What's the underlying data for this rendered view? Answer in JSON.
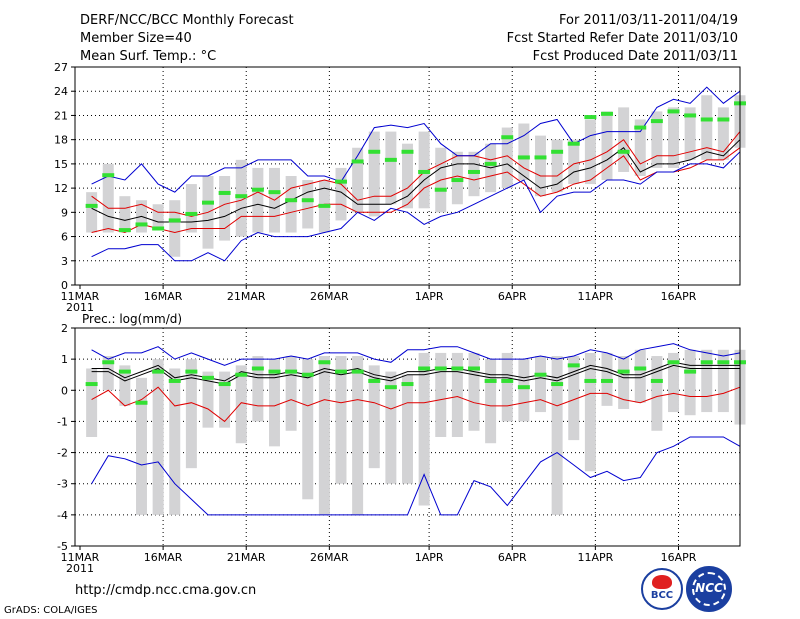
{
  "header": {
    "title": "DERF/NCC/BCC Monthly Forecast",
    "member_size": "Member Size=40",
    "variable": "Mean Surf. Temp.: °C",
    "forecast_period": "For 2011/03/11-2011/04/19",
    "started_refer": "Fcst Started Refer Date 2011/03/10",
    "produced": "Fcst Produced Date 2011/03/11"
  },
  "footer": {
    "url": "http://cmdp.ncc.cma.gov.cn",
    "credit": "GrADS: COLA/IGES",
    "logo_left_text": "BCC",
    "logo_right_text": "NCC"
  },
  "colors": {
    "box": "#d3d3d5",
    "member": "#33e033",
    "median": "#000000",
    "inner_band": "#e00000",
    "outer_band": "#0000d0",
    "grid": "#000000"
  },
  "chart_data": [
    {
      "type": "box-plume",
      "title": "Mean Surf. Temp.: °C",
      "ylabel": "°C",
      "ylim": [
        0,
        27
      ],
      "yticks": [
        0,
        3,
        6,
        9,
        12,
        15,
        18,
        21,
        24,
        27
      ],
      "x_days": 40,
      "xtick_days": [
        0,
        5,
        10,
        15,
        21,
        26,
        31,
        36
      ],
      "xtick_labels": [
        "11MAR",
        "16MAR",
        "21MAR",
        "26MAR",
        "1APR",
        "6APR",
        "11APR",
        "16APR"
      ],
      "x_sublabel": "2011",
      "grid": "dotted",
      "series": [
        {
          "name": "median",
          "values": [
            9.5,
            8.5,
            8.0,
            8.5,
            7.8,
            7.8,
            7.8,
            8.0,
            8.5,
            9.5,
            10.0,
            9.5,
            10.5,
            11.5,
            12.0,
            11.5,
            10.0,
            10.0,
            10.0,
            11.0,
            13.0,
            14.5,
            15.0,
            15.0,
            14.5,
            15.0,
            13.5,
            12.0,
            12.5,
            14.0,
            14.5,
            15.5,
            17.0,
            14.0,
            15.0,
            15.0,
            15.5,
            16.5,
            16.0,
            18.0
          ]
        },
        {
          "name": "red_upper",
          "values": [
            11.0,
            9.5,
            9.5,
            10.0,
            9.0,
            9.0,
            8.5,
            9.0,
            10.0,
            10.5,
            11.5,
            10.5,
            12.0,
            12.5,
            13.0,
            12.5,
            10.5,
            11.0,
            11.0,
            12.0,
            14.0,
            15.0,
            16.0,
            16.0,
            15.5,
            16.0,
            14.5,
            13.5,
            13.5,
            15.0,
            15.5,
            16.5,
            18.0,
            15.0,
            16.0,
            16.0,
            16.5,
            17.0,
            16.5,
            19.0
          ]
        },
        {
          "name": "red_lower",
          "values": [
            6.5,
            7.0,
            6.5,
            7.5,
            7.0,
            6.5,
            7.0,
            7.0,
            7.0,
            8.5,
            8.5,
            8.5,
            9.0,
            9.5,
            10.0,
            10.0,
            9.0,
            9.0,
            9.0,
            10.0,
            12.0,
            13.0,
            13.5,
            13.0,
            13.5,
            14.0,
            12.5,
            11.0,
            11.5,
            12.5,
            13.0,
            14.5,
            16.0,
            13.0,
            14.0,
            14.0,
            14.5,
            15.5,
            15.5,
            17.0
          ]
        },
        {
          "name": "blue_upper",
          "values": [
            12.5,
            13.5,
            13.0,
            15.0,
            12.5,
            11.5,
            13.5,
            13.5,
            14.5,
            14.5,
            15.5,
            15.5,
            15.5,
            13.5,
            13.5,
            12.8,
            16.0,
            19.5,
            19.8,
            19.5,
            20.0,
            17.5,
            16.0,
            16.0,
            17.5,
            17.5,
            18.5,
            20.0,
            20.5,
            17.5,
            18.5,
            19.0,
            19.0,
            19.0,
            22.0,
            23.0,
            22.5,
            24.5,
            22.5,
            24.0
          ]
        },
        {
          "name": "blue_lower",
          "values": [
            3.5,
            4.5,
            4.5,
            5.0,
            5.0,
            3.0,
            3.0,
            4.0,
            3.0,
            5.5,
            6.5,
            6.0,
            6.0,
            6.0,
            6.5,
            7.0,
            9.0,
            8.0,
            9.5,
            9.0,
            7.5,
            8.5,
            9.0,
            10.0,
            11.0,
            12.0,
            13.0,
            9.0,
            11.0,
            11.5,
            11.5,
            13.0,
            13.0,
            12.5,
            14.0,
            14.0,
            15.0,
            15.0,
            14.5,
            16.5
          ]
        },
        {
          "name": "members",
          "values": [
            9.8,
            13.6,
            6.8,
            7.5,
            7.0,
            8.0,
            8.8,
            10.2,
            11.4,
            11.0,
            11.8,
            11.5,
            10.5,
            10.5,
            9.8,
            12.8,
            15.3,
            16.5,
            15.5,
            16.5,
            14.0,
            11.8,
            13.0,
            14.0,
            15.0,
            18.3,
            15.8,
            15.8,
            16.5,
            17.5,
            20.8,
            21.2,
            16.5,
            19.5,
            20.3,
            21.5,
            21.0,
            20.5,
            20.5,
            22.5
          ]
        }
      ],
      "boxes": {
        "lows": [
          6.5,
          6.5,
          6.5,
          6.5,
          7.0,
          3.5,
          6.5,
          4.5,
          5.5,
          6.0,
          6.5,
          6.5,
          6.5,
          7.0,
          6.5,
          8.0,
          9.0,
          8.5,
          10.0,
          9.5,
          9.5,
          9.0,
          10.0,
          11.0,
          11.5,
          12.0,
          13.0,
          11.0,
          11.5,
          12.5,
          12.5,
          13.0,
          14.0,
          13.5,
          14.5,
          14.5,
          15.5,
          15.5,
          15.5,
          17.0
        ],
        "highs": [
          11.5,
          15.0,
          11.0,
          10.5,
          10.0,
          10.5,
          12.5,
          13.5,
          13.5,
          15.5,
          14.5,
          14.5,
          13.5,
          13.0,
          13.0,
          14.5,
          17.0,
          19.0,
          19.0,
          17.5,
          19.0,
          17.0,
          16.5,
          16.5,
          17.5,
          19.5,
          20.0,
          18.5,
          18.0,
          18.0,
          20.5,
          21.5,
          22.0,
          20.5,
          21.5,
          22.0,
          22.0,
          23.5,
          22.0,
          23.5
        ]
      }
    },
    {
      "type": "box-plume",
      "title": "Prec.: log(mm/d)",
      "ylabel": "log(mm/d)",
      "ylim": [
        -5,
        2
      ],
      "yticks": [
        -5,
        -4,
        -3,
        -2,
        -1,
        0,
        1,
        2
      ],
      "x_days": 40,
      "xtick_days": [
        0,
        5,
        10,
        15,
        21,
        26,
        31,
        36
      ],
      "xtick_labels": [
        "11MAR",
        "16MAR",
        "21MAR",
        "26MAR",
        "1APR",
        "6APR",
        "11APR",
        "16APR"
      ],
      "x_sublabel": "2011",
      "grid": "dotted",
      "series": [
        {
          "name": "median",
          "values": [
            0.6,
            0.6,
            0.3,
            0.5,
            0.7,
            0.3,
            0.4,
            0.3,
            0.2,
            0.5,
            0.4,
            0.4,
            0.5,
            0.4,
            0.6,
            0.5,
            0.6,
            0.4,
            0.3,
            0.5,
            0.5,
            0.6,
            0.6,
            0.5,
            0.4,
            0.4,
            0.3,
            0.4,
            0.3,
            0.5,
            0.7,
            0.6,
            0.4,
            0.4,
            0.6,
            0.8,
            0.7,
            0.7,
            0.7,
            0.7
          ]
        },
        {
          "name": "black_inner",
          "values": [
            0.7,
            0.7,
            0.4,
            0.6,
            0.8,
            0.4,
            0.5,
            0.4,
            0.3,
            0.6,
            0.5,
            0.5,
            0.6,
            0.5,
            0.7,
            0.6,
            0.7,
            0.5,
            0.4,
            0.6,
            0.6,
            0.7,
            0.7,
            0.6,
            0.5,
            0.5,
            0.4,
            0.5,
            0.4,
            0.6,
            0.8,
            0.7,
            0.5,
            0.5,
            0.7,
            0.9,
            0.8,
            0.8,
            0.8,
            0.8
          ]
        },
        {
          "name": "red_lower",
          "values": [
            -0.3,
            0.0,
            -0.5,
            -0.3,
            0.1,
            -0.5,
            -0.4,
            -0.6,
            -1.0,
            -0.4,
            -0.5,
            -0.5,
            -0.3,
            -0.5,
            -0.3,
            -0.4,
            -0.3,
            -0.4,
            -0.6,
            -0.4,
            -0.4,
            -0.3,
            -0.2,
            -0.4,
            -0.5,
            -0.5,
            -0.4,
            -0.3,
            -0.5,
            -0.3,
            -0.1,
            -0.1,
            -0.3,
            -0.4,
            -0.2,
            -0.1,
            -0.2,
            -0.2,
            -0.1,
            0.1
          ]
        },
        {
          "name": "blue_upper",
          "values": [
            1.3,
            1.0,
            1.2,
            1.2,
            1.4,
            1.0,
            1.2,
            1.0,
            0.8,
            1.0,
            1.0,
            1.0,
            1.1,
            1.0,
            1.2,
            1.2,
            1.2,
            1.0,
            0.9,
            1.3,
            1.3,
            1.4,
            1.4,
            1.2,
            1.0,
            1.0,
            1.0,
            1.1,
            1.0,
            1.1,
            1.3,
            1.2,
            1.0,
            1.3,
            1.4,
            1.5,
            1.3,
            1.2,
            1.1,
            1.2
          ]
        },
        {
          "name": "blue_lower",
          "values": [
            -3.0,
            -2.1,
            -2.2,
            -2.4,
            -2.3,
            -3.0,
            -3.5,
            -4.0,
            -4.0,
            -4.0,
            -4.0,
            -4.0,
            -4.0,
            -4.0,
            -4.0,
            -4.0,
            -4.0,
            -4.0,
            -4.0,
            -4.0,
            -2.7,
            -4.0,
            -4.0,
            -2.9,
            -3.1,
            -3.7,
            -3.0,
            -2.3,
            -2.0,
            -2.4,
            -2.8,
            -2.6,
            -2.9,
            -2.8,
            -2.0,
            -1.8,
            -1.5,
            -1.5,
            -1.5,
            -1.8
          ]
        },
        {
          "name": "members",
          "values": [
            0.2,
            0.9,
            0.6,
            -0.4,
            0.6,
            0.3,
            0.6,
            0.4,
            0.2,
            0.5,
            0.7,
            0.6,
            0.6,
            0.5,
            0.9,
            0.6,
            0.6,
            0.3,
            0.1,
            0.2,
            0.7,
            0.7,
            0.7,
            0.7,
            0.3,
            0.3,
            0.1,
            0.5,
            0.2,
            0.8,
            0.3,
            0.3,
            0.6,
            0.7,
            0.3,
            0.9,
            0.6,
            0.9,
            0.9,
            0.9
          ]
        }
      ],
      "boxes": {
        "lows": [
          -1.5,
          0.0,
          -0.5,
          -4.0,
          -4.0,
          -4.0,
          -2.5,
          -1.2,
          -1.2,
          -1.7,
          -1.0,
          -1.8,
          -1.3,
          -3.5,
          -4.0,
          -3.0,
          -4.0,
          -2.5,
          -3.0,
          -3.0,
          -3.7,
          -1.5,
          -1.5,
          -1.3,
          -1.7,
          -1.0,
          -1.0,
          -0.7,
          -4.0,
          -1.6,
          -2.6,
          -0.5,
          -0.6,
          -0.4,
          -1.3,
          -0.7,
          -0.8,
          -0.7,
          -0.7,
          -1.1
        ],
        "highs": [
          0.7,
          1.1,
          0.8,
          0.4,
          1.0,
          0.7,
          1.0,
          0.6,
          0.6,
          0.8,
          1.1,
          1.0,
          1.1,
          1.0,
          1.1,
          1.1,
          1.1,
          0.8,
          0.6,
          0.5,
          1.2,
          1.2,
          1.2,
          1.2,
          1.0,
          1.2,
          1.0,
          1.1,
          1.1,
          1.1,
          1.2,
          1.2,
          1.1,
          1.3,
          1.1,
          1.2,
          1.3,
          1.3,
          1.3,
          1.3
        ]
      }
    }
  ]
}
